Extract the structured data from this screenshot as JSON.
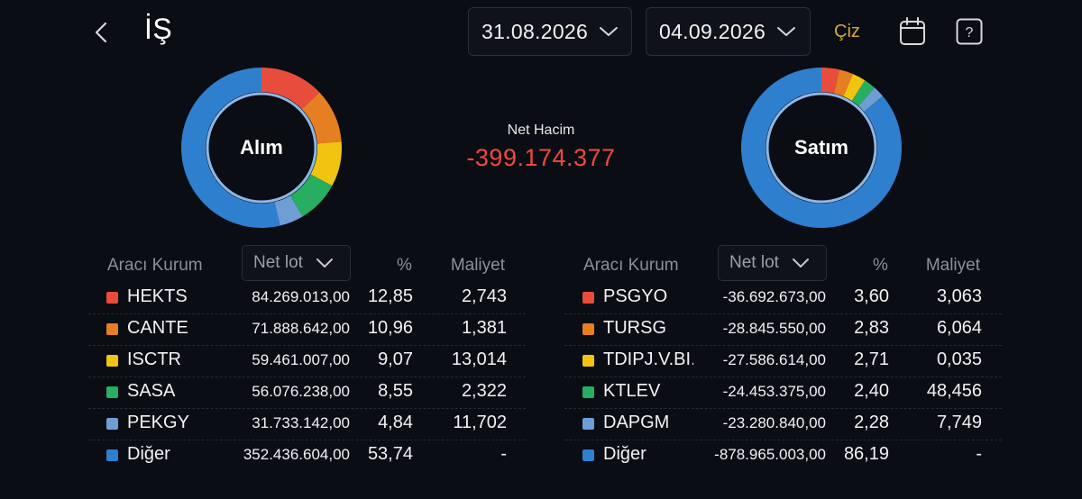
{
  "header": {
    "title": "İŞ",
    "start_date": "31.08.2026",
    "end_date": "04.09.2026",
    "draw_label": "Çiz",
    "back_icon": "chevron-left-icon",
    "calendar_icon": "calendar-icon",
    "help_icon": "help-icon"
  },
  "summary": {
    "net_volume_label": "Net Hacim",
    "net_volume_value": "-399.174.377"
  },
  "colors": {
    "red": "#e84c3d",
    "orange": "#e67e22",
    "yellow": "#f1c40f",
    "green": "#27ae60",
    "lightblue": "#6f9ed6",
    "blue": "#2f7fcf",
    "negative": "#ef4a3d",
    "accent": "#d6a83a"
  },
  "buy": {
    "donut_label": "Alım",
    "columns": {
      "broker": "Aracı Kurum",
      "lot_select": "Net lot",
      "percent": "%",
      "cost": "Maliyet"
    },
    "rows": [
      {
        "name": "HEKTS",
        "lot": "84.269.013,00",
        "percent": "12,85",
        "cost": "2,743",
        "color": "#e84c3d"
      },
      {
        "name": "CANTE",
        "lot": "71.888.642,00",
        "percent": "10,96",
        "cost": "1,381",
        "color": "#e67e22"
      },
      {
        "name": "ISCTR",
        "lot": "59.461.007,00",
        "percent": "9,07",
        "cost": "13,014",
        "color": "#f1c40f"
      },
      {
        "name": "SASA",
        "lot": "56.076.238,00",
        "percent": "8,55",
        "cost": "2,322",
        "color": "#27ae60"
      },
      {
        "name": "PEKGY",
        "lot": "31.733.142,00",
        "percent": "4,84",
        "cost": "11,702",
        "color": "#6f9ed6"
      },
      {
        "name": "Diğer",
        "lot": "352.436.604,00",
        "percent": "53,74",
        "cost": "-",
        "color": "#2f7fcf"
      }
    ]
  },
  "sell": {
    "donut_label": "Satım",
    "columns": {
      "broker": "Aracı Kurum",
      "lot_select": "Net lot",
      "percent": "%",
      "cost": "Maliyet"
    },
    "rows": [
      {
        "name": "PSGYO",
        "lot": "-36.692.673,00",
        "percent": "3,60",
        "cost": "3,063",
        "color": "#e84c3d"
      },
      {
        "name": "TURSG",
        "lot": "-28.845.550,00",
        "percent": "2,83",
        "cost": "6,064",
        "color": "#e67e22"
      },
      {
        "name": "TDIPJ.V.BI...",
        "lot": "-27.586.614,00",
        "percent": "2,71",
        "cost": "0,035",
        "color": "#f1c40f"
      },
      {
        "name": "KTLEV",
        "lot": "-24.453.375,00",
        "percent": "2,40",
        "cost": "48,456",
        "color": "#27ae60"
      },
      {
        "name": "DAPGM",
        "lot": "-23.280.840,00",
        "percent": "2,28",
        "cost": "7,749",
        "color": "#6f9ed6"
      },
      {
        "name": "Diğer",
        "lot": "-878.965.003,00",
        "percent": "86,19",
        "cost": "-",
        "color": "#2f7fcf"
      }
    ]
  }
}
